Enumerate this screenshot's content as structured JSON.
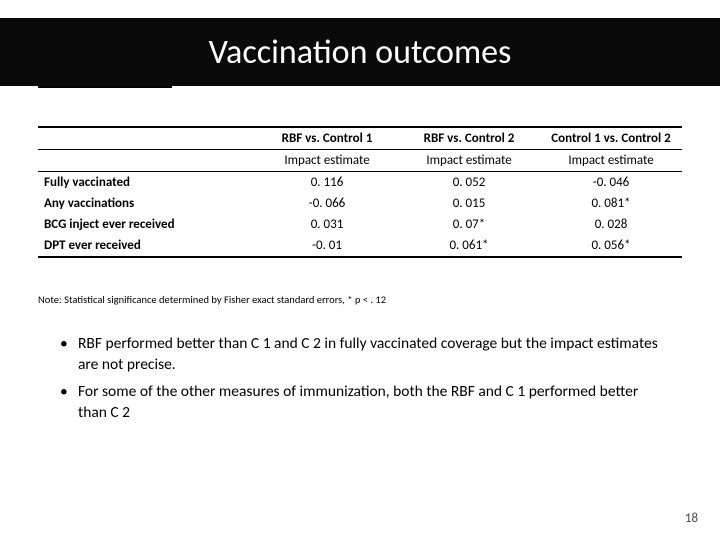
{
  "title": "Vaccination outcomes",
  "table": {
    "headers": [
      "RBF vs. Control 1",
      "RBF vs. Control 2",
      "Control 1 vs. Control 2"
    ],
    "subheader": "Impact estimate",
    "rows": [
      {
        "label": "Fully vaccinated",
        "c1": "0. 116",
        "c2": "0. 052",
        "c3": "-0. 046"
      },
      {
        "label": "Any vaccinations",
        "c1": "-0. 066",
        "c2": "0. 015",
        "c3": "0. 081*"
      },
      {
        "label": "BCG inject ever received",
        "c1": "0. 031",
        "c2": "0. 07*",
        "c3": "0. 028"
      },
      {
        "label": "DPT ever received",
        "c1": "-0. 01",
        "c2": "0. 061*",
        "c3": "0. 056*"
      }
    ],
    "note": "Note: Statistical significance determined by Fisher exact standard errors, * p < . 12"
  },
  "bullets": [
    "RBF performed better than C 1 and C 2 in fully vaccinated coverage but the impact estimates are not precise.",
    "For some of the other measures of immunization, both the RBF and C 1 performed better than C 2"
  ],
  "page_number": "18",
  "colors": {
    "band_bg": "#0a0a0a",
    "title_text": "#ffffff",
    "body_text": "#000000",
    "pagenum": "#4a4a4a"
  },
  "fonts": {
    "title_size_pt": 34,
    "table_size_pt": 13,
    "note_size_pt": 10.5,
    "bullet_size_pt": 15.5,
    "family": "Calibri"
  }
}
